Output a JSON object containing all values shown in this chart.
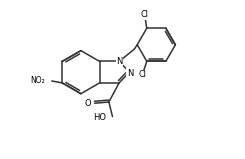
{
  "background_color": "#ffffff",
  "line_color": "#333333",
  "line_width": 1.1,
  "figsize": [
    2.45,
    1.59
  ],
  "dpi": 100,
  "xlim": [
    0,
    10
  ],
  "ylim": [
    0,
    6.5
  ]
}
